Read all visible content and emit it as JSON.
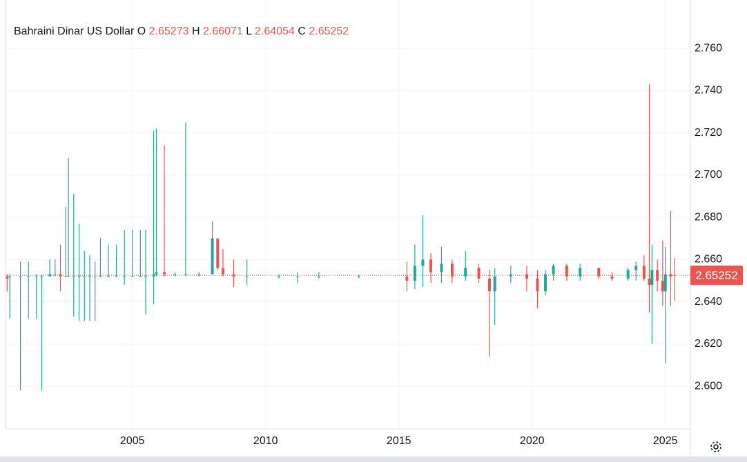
{
  "chart_data": {
    "type": "candlestick",
    "title": "Bahraini Dinar US Dollar",
    "ohlc_labels": [
      "O",
      "H",
      "L",
      "C"
    ],
    "up_color": "#26a69a",
    "down_color": "#ef5350",
    "grid": true,
    "xlim": [
      2000.24,
      2025.94
    ],
    "xticks": [
      2005,
      2010,
      2015,
      2020,
      2025
    ],
    "ylim": [
      2.5798,
      2.7829
    ],
    "yticks": [
      {
        "value": 2.6,
        "label": "2.600"
      },
      {
        "value": 2.62,
        "label": "2.620"
      },
      {
        "value": 2.64,
        "label": "2.640"
      },
      {
        "value": 2.66,
        "label": "2.660"
      },
      {
        "value": 2.68,
        "label": "2.680"
      },
      {
        "value": 2.7,
        "label": "2.700"
      },
      {
        "value": 2.72,
        "label": "2.720"
      },
      {
        "value": 2.74,
        "label": "2.740"
      },
      {
        "value": 2.76,
        "label": "2.760"
      }
    ],
    "x": [
      2000.3,
      2000.4,
      2000.8,
      2001.1,
      2001.4,
      2001.6,
      2001.9,
      2002.1,
      2002.3,
      2002.5,
      2002.6,
      2002.8,
      2003.0,
      2003.2,
      2003.4,
      2003.6,
      2003.8,
      2004.1,
      2004.4,
      2004.7,
      2005.0,
      2005.3,
      2005.5,
      2005.8,
      2005.9,
      2006.2,
      2006.6,
      2007.0,
      2007.5,
      2008.0,
      2008.2,
      2008.4,
      2008.8,
      2009.3,
      2010.5,
      2011.2,
      2012.0,
      2013.5,
      2015.3,
      2015.6,
      2015.9,
      2016.2,
      2016.6,
      2017.0,
      2017.5,
      2018.0,
      2018.4,
      2018.6,
      2019.2,
      2019.8,
      2020.2,
      2020.5,
      2020.8,
      2021.3,
      2021.8,
      2022.5,
      2023.0,
      2023.6,
      2023.9,
      2024.2,
      2024.4,
      2024.5,
      2024.7,
      2024.9,
      2025.0,
      2025.2,
      2025.35
    ],
    "open": [
      2.652,
      2.652,
      2.652,
      2.652,
      2.652,
      2.652,
      2.652,
      2.653,
      2.653,
      2.652,
      2.652,
      2.652,
      2.652,
      2.652,
      2.652,
      2.652,
      2.652,
      2.652,
      2.652,
      2.652,
      2.652,
      2.652,
      2.652,
      2.652,
      2.653,
      2.654,
      2.653,
      2.653,
      2.653,
      2.653,
      2.67,
      2.656,
      2.653,
      2.652,
      2.652,
      2.652,
      2.652,
      2.652,
      2.652,
      2.65,
      2.657,
      2.66,
      2.654,
      2.658,
      2.652,
      2.656,
      2.651,
      2.645,
      2.652,
      2.653,
      2.651,
      2.645,
      2.653,
      2.657,
      2.652,
      2.656,
      2.652,
      2.651,
      2.655,
      2.657,
      2.651,
      2.648,
      2.655,
      2.65,
      2.645,
      2.653,
      2.65273
    ],
    "high": [
      2.653,
      2.653,
      2.659,
      2.659,
      2.653,
      2.653,
      2.66,
      2.66,
      2.667,
      2.685,
      2.708,
      2.691,
      2.677,
      2.664,
      2.662,
      2.659,
      2.67,
      2.667,
      2.667,
      2.674,
      2.674,
      2.674,
      2.674,
      2.721,
      2.722,
      2.714,
      2.654,
      2.725,
      2.654,
      2.678,
      2.67,
      2.665,
      2.66,
      2.66,
      2.653,
      2.654,
      2.654,
      2.653,
      2.659,
      2.667,
      2.681,
      2.663,
      2.666,
      2.66,
      2.664,
      2.658,
      2.655,
      2.656,
      2.657,
      2.657,
      2.655,
      2.655,
      2.658,
      2.658,
      2.658,
      2.656,
      2.654,
      2.656,
      2.659,
      2.662,
      2.743,
      2.667,
      2.66,
      2.669,
      2.666,
      2.683,
      2.66071
    ],
    "low": [
      2.645,
      2.632,
      2.598,
      2.632,
      2.632,
      2.598,
      2.652,
      2.652,
      2.645,
      2.652,
      2.652,
      2.633,
      2.631,
      2.631,
      2.631,
      2.631,
      2.652,
      2.652,
      2.652,
      2.648,
      2.652,
      2.652,
      2.634,
      2.639,
      2.652,
      2.652,
      2.652,
      2.652,
      2.652,
      2.653,
      2.655,
      2.652,
      2.647,
      2.648,
      2.651,
      2.649,
      2.651,
      2.651,
      2.645,
      2.646,
      2.647,
      2.649,
      2.649,
      2.649,
      2.65,
      2.649,
      2.614,
      2.629,
      2.649,
      2.645,
      2.637,
      2.643,
      2.65,
      2.65,
      2.65,
      2.651,
      2.65,
      2.65,
      2.65,
      2.65,
      2.635,
      2.62,
      2.645,
      2.638,
      2.611,
      2.638,
      2.64054
    ],
    "close": [
      2.651,
      2.652,
      2.652,
      2.652,
      2.652,
      2.652,
      2.653,
      2.653,
      2.652,
      2.652,
      2.652,
      2.652,
      2.652,
      2.652,
      2.652,
      2.652,
      2.652,
      2.652,
      2.652,
      2.652,
      2.652,
      2.652,
      2.652,
      2.653,
      2.654,
      2.653,
      2.653,
      2.653,
      2.653,
      2.67,
      2.656,
      2.653,
      2.652,
      2.652,
      2.652,
      2.652,
      2.652,
      2.652,
      2.65,
      2.657,
      2.66,
      2.654,
      2.658,
      2.652,
      2.656,
      2.651,
      2.645,
      2.652,
      2.653,
      2.651,
      2.645,
      2.653,
      2.657,
      2.652,
      2.656,
      2.652,
      2.651,
      2.655,
      2.657,
      2.651,
      2.648,
      2.655,
      2.65,
      2.645,
      2.653,
      2.652,
      2.65252
    ]
  }
}
